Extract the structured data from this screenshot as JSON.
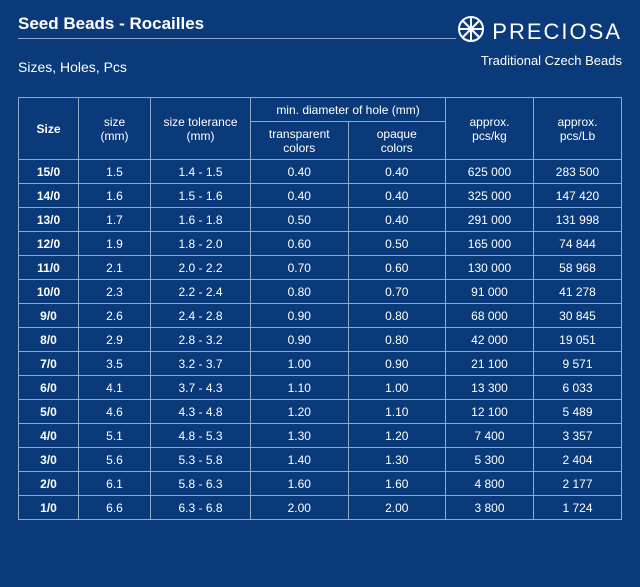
{
  "colors": {
    "background": "#0a3a7a",
    "foreground": "#ffffff",
    "grid": "#8fa8c8"
  },
  "header": {
    "title": "Seed Beads - Rocailles",
    "subtitle": "Sizes, Holes, Pcs",
    "brand_name": "PRECIOSA",
    "tagline": "Traditional Czech Beads"
  },
  "table": {
    "columns": {
      "size_label": "Size",
      "size_mm": "size\n(mm)",
      "tolerance": "size tolerance\n(mm)",
      "hole_group": "min. diameter of hole (mm)",
      "hole_transparent": "transparent\ncolors",
      "hole_opaque": "opaque\ncolors",
      "pcs_kg": "approx.\npcs/kg",
      "pcs_lb": "approx.\npcs/Lb"
    },
    "rows": [
      {
        "size": "15/0",
        "mm": "1.5",
        "tol": "1.4 - 1.5",
        "t": "0.40",
        "o": "0.40",
        "kg": "625 000",
        "lb": "283 500"
      },
      {
        "size": "14/0",
        "mm": "1.6",
        "tol": "1.5 - 1.6",
        "t": "0.40",
        "o": "0.40",
        "kg": "325 000",
        "lb": "147 420"
      },
      {
        "size": "13/0",
        "mm": "1.7",
        "tol": "1.6 - 1.8",
        "t": "0.50",
        "o": "0.40",
        "kg": "291 000",
        "lb": "131 998"
      },
      {
        "size": "12/0",
        "mm": "1.9",
        "tol": "1.8 - 2.0",
        "t": "0.60",
        "o": "0.50",
        "kg": "165 000",
        "lb": "74 844"
      },
      {
        "size": "11/0",
        "mm": "2.1",
        "tol": "2.0 - 2.2",
        "t": "0.70",
        "o": "0.60",
        "kg": "130 000",
        "lb": "58 968"
      },
      {
        "size": "10/0",
        "mm": "2.3",
        "tol": "2.2 - 2.4",
        "t": "0.80",
        "o": "0.70",
        "kg": "91 000",
        "lb": "41 278"
      },
      {
        "size": "9/0",
        "mm": "2.6",
        "tol": "2.4 - 2.8",
        "t": "0.90",
        "o": "0.80",
        "kg": "68 000",
        "lb": "30 845"
      },
      {
        "size": "8/0",
        "mm": "2.9",
        "tol": "2.8 - 3.2",
        "t": "0.90",
        "o": "0.80",
        "kg": "42 000",
        "lb": "19 051"
      },
      {
        "size": "7/0",
        "mm": "3.5",
        "tol": "3.2 - 3.7",
        "t": "1.00",
        "o": "0.90",
        "kg": "21 100",
        "lb": "9 571"
      },
      {
        "size": "6/0",
        "mm": "4.1",
        "tol": "3.7 - 4.3",
        "t": "1.10",
        "o": "1.00",
        "kg": "13 300",
        "lb": "6 033"
      },
      {
        "size": "5/0",
        "mm": "4.6",
        "tol": "4.3 - 4.8",
        "t": "1.20",
        "o": "1.10",
        "kg": "12 100",
        "lb": "5 489"
      },
      {
        "size": "4/0",
        "mm": "5.1",
        "tol": "4.8 - 5.3",
        "t": "1.30",
        "o": "1.20",
        "kg": "7 400",
        "lb": "3 357"
      },
      {
        "size": "3/0",
        "mm": "5.6",
        "tol": "5.3 - 5.8",
        "t": "1.40",
        "o": "1.30",
        "kg": "5 300",
        "lb": "2 404"
      },
      {
        "size": "2/0",
        "mm": "6.1",
        "tol": "5.8 - 6.3",
        "t": "1.60",
        "o": "1.60",
        "kg": "4 800",
        "lb": "2 177"
      },
      {
        "size": "1/0",
        "mm": "6.6",
        "tol": "6.3 - 6.8",
        "t": "2.00",
        "o": "2.00",
        "kg": "3 800",
        "lb": "1 724"
      }
    ]
  }
}
